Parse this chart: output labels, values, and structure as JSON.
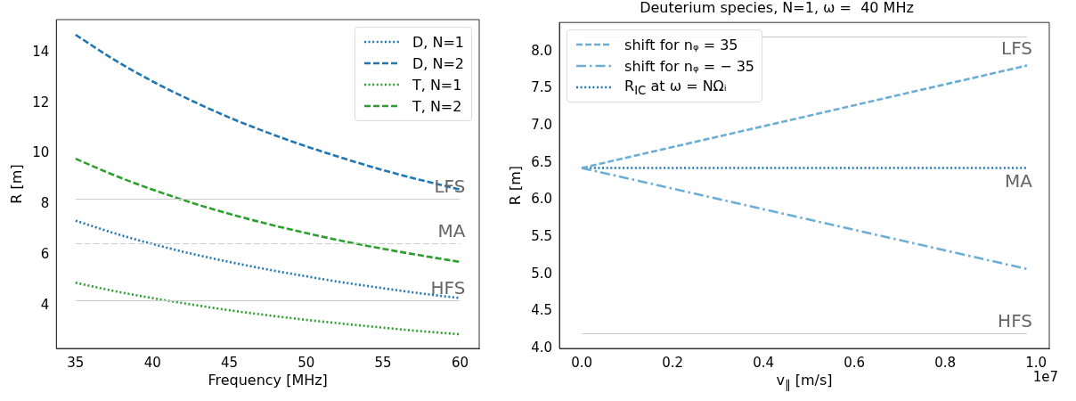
{
  "chart_data": [
    {
      "type": "line",
      "xlabel": "Frequency [MHz]",
      "ylabel": "R [m]",
      "x": [
        35,
        37.5,
        40,
        42.5,
        45,
        47.5,
        50,
        52.5,
        55,
        57.5,
        60
      ],
      "xlim": [
        33.75,
        61.25
      ],
      "xticks": [
        35,
        40,
        45,
        50,
        55,
        60
      ],
      "ylim": [
        2.3,
        15.3
      ],
      "yticks": [
        4,
        6,
        8,
        10,
        12,
        14
      ],
      "grid": false,
      "legend": "top right",
      "series": [
        {
          "name": "D,  N=1",
          "color": "#1f77b4",
          "line_style": "dotted",
          "values": [
            7.35,
            6.86,
            6.43,
            6.05,
            5.72,
            5.42,
            5.15,
            4.9,
            4.68,
            4.47,
            4.29
          ]
        },
        {
          "name": "D,  N=2",
          "color": "#1f77b4",
          "line_style": "dashed",
          "values": [
            14.7,
            13.72,
            12.86,
            12.11,
            11.43,
            10.83,
            10.29,
            9.8,
            9.35,
            8.95,
            8.58
          ]
        },
        {
          "name": "T,  N=1",
          "color": "#2ca02c",
          "line_style": "dotted",
          "values": [
            4.9,
            4.57,
            4.29,
            4.04,
            3.81,
            3.61,
            3.43,
            3.27,
            3.12,
            2.98,
            2.86
          ]
        },
        {
          "name": "T,  N=2",
          "color": "#2ca02c",
          "line_style": "dashed",
          "values": [
            9.8,
            9.15,
            8.58,
            8.07,
            7.62,
            7.22,
            6.86,
            6.53,
            6.24,
            5.97,
            5.72
          ]
        }
      ],
      "ref_lines": [
        {
          "axis": "y",
          "value": 8.2,
          "color": "#cccccc",
          "line_style": "solid",
          "label": "LFS"
        },
        {
          "axis": "y",
          "value": 6.43,
          "color": "#cccccc",
          "line_style": "dashed",
          "label": "MA"
        },
        {
          "axis": "y",
          "value": 4.2,
          "color": "#cccccc",
          "line_style": "solid",
          "label": "HFS"
        }
      ]
    },
    {
      "type": "line",
      "title": "Deuterium species, N=1, ω =  40 MHz",
      "xlabel": "v$_{∥}$ [m/s]",
      "ylabel": "R [m]",
      "x": [
        0,
        0.98
      ],
      "xlim": [
        -0.049,
        1.029
      ],
      "xticks": [
        {
          "value": 0,
          "label": "0.0"
        },
        0.2,
        0.4,
        0.6,
        0.8,
        {
          "value": 1,
          "label": "1.0"
        }
      ],
      "ylim": [
        4.0,
        8.39
      ],
      "yticks": [
        {
          "value": 4,
          "label": "4.0"
        },
        {
          "value": 4.5,
          "label": "4.5"
        },
        {
          "value": 5,
          "label": "5.0"
        },
        {
          "value": 5.5,
          "label": "5.5"
        },
        {
          "value": 6,
          "label": "6.0"
        },
        {
          "value": 6.5,
          "label": "6.5"
        },
        {
          "value": 7,
          "label": "7.0"
        },
        {
          "value": 7.5,
          "label": "7.5"
        },
        {
          "value": 8,
          "label": "8.0"
        }
      ],
      "grid": false,
      "legend": "top left",
      "series": [
        {
          "name": "shift for nᵩ = 35",
          "color": "#6baed6",
          "line_style": "dashed",
          "values": [
            6.43,
            7.81
          ]
        },
        {
          "name": "shift for nᵩ = − 35",
          "color": "#6baed6",
          "line_style": "dashdot",
          "values": [
            6.43,
            5.07
          ]
        },
        {
          "name": "R$_{IC}$ at ω = NΩᵢ",
          "color": "#1f77b4",
          "line_style": "dotted",
          "values": [
            6.43,
            6.43
          ]
        }
      ],
      "ref_lines": [
        {
          "axis": "y",
          "value": 8.2,
          "color": "#cccccc",
          "line_style": "solid",
          "label": "LFS"
        },
        {
          "axis": "y",
          "value": 4.2,
          "color": "#cccccc",
          "line_style": "solid",
          "label": "HFS"
        }
      ],
      "annotations": [
        {
          "text": "MA",
          "x": 0.98,
          "y": 6.43
        },
        "1e7"
      ]
    }
  ]
}
